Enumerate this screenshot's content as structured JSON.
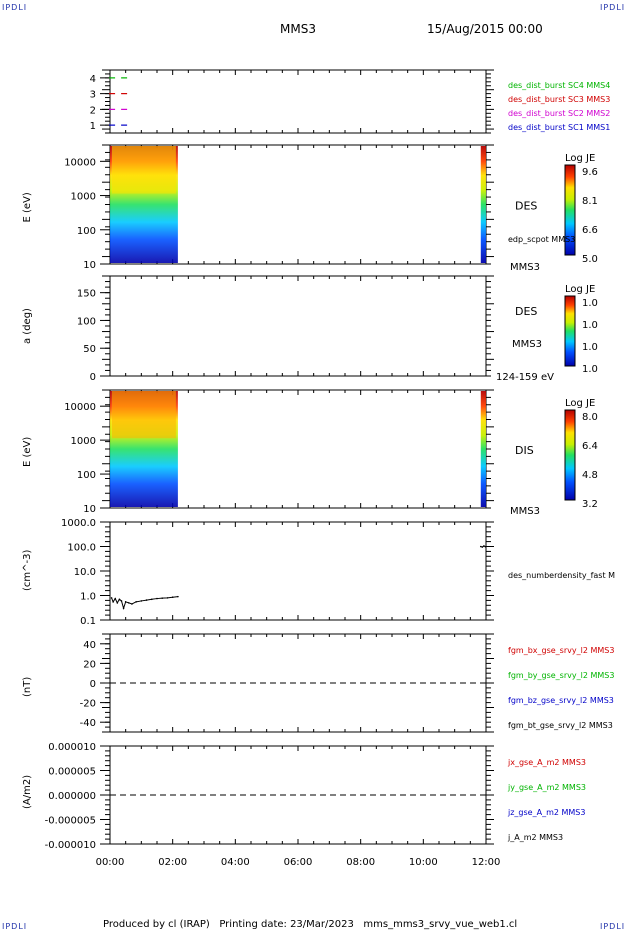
{
  "corner_label": "IPDLI",
  "header": {
    "spacecraft": "MMS3",
    "datetime": "15/Aug/2015 00:00"
  },
  "footer": "Produced by cl (IRAP)   Printing date: 23/Mar/2023   mms_mms3_srvy_vue_web1.cl",
  "chart_data": [
    {
      "type": "scatter",
      "panel": "burst-availability",
      "ylim": [
        0.5,
        4.5
      ],
      "yticks": [
        "1",
        "2",
        "3",
        "4"
      ],
      "series": [
        {
          "name": "des_dist_burst SC1 MMS1",
          "color": "#0000c8",
          "y": 1,
          "x": [
            "00:04",
            "00:27"
          ]
        },
        {
          "name": "des_dist_burst SC2 MMS2",
          "color": "#d000d0",
          "y": 2,
          "x": [
            "00:04",
            "00:27"
          ]
        },
        {
          "name": "des_dist_burst SC3 MMS3",
          "color": "#d00000",
          "y": 3,
          "x": [
            "00:04",
            "00:27"
          ]
        },
        {
          "name": "des_dist_burst SC4 MMS4",
          "color": "#00b400",
          "y": 4,
          "x": [
            "00:04",
            "00:27"
          ]
        }
      ]
    },
    {
      "type": "heatmap",
      "panel": "des-energy-spectrogram",
      "ylabel": "E (eV)",
      "yscale": "log",
      "ylim": [
        10,
        30000
      ],
      "yticks": [
        "10",
        "100",
        "1000",
        "10000"
      ],
      "label": "DES",
      "sub_label": "MMS3",
      "overlay": "edp_scpot MMS3",
      "colorbar": {
        "title": "Log JE",
        "ticks": [
          "9.6",
          "8.1",
          "6.6",
          "5.0"
        ]
      },
      "data_coverage": [
        [
          "00:00",
          "02:10"
        ],
        [
          "11:50",
          "12:00"
        ]
      ]
    },
    {
      "type": "heatmap",
      "panel": "des-pitch-angle",
      "ylabel": "a (deg)",
      "ylim": [
        0,
        180
      ],
      "yticks": [
        "0",
        "50",
        "100",
        "150"
      ],
      "label": "DES",
      "sub_label": "MMS3",
      "energy_range": "124-159 eV",
      "colorbar": {
        "title": "Log JE",
        "ticks": [
          "1.0",
          "1.0",
          "1.0",
          "1.0"
        ]
      }
    },
    {
      "type": "heatmap",
      "panel": "dis-energy-spectrogram",
      "ylabel": "E (eV)",
      "yscale": "log",
      "ylim": [
        10,
        30000
      ],
      "yticks": [
        "10",
        "100",
        "1000",
        "10000"
      ],
      "label": "DIS",
      "sub_label": "MMS3",
      "colorbar": {
        "title": "Log JE",
        "ticks": [
          "8.0",
          "6.4",
          "4.8",
          "3.2"
        ]
      },
      "data_coverage": [
        [
          "00:00",
          "02:10"
        ],
        [
          "11:50",
          "12:00"
        ]
      ]
    },
    {
      "type": "line",
      "panel": "electron-density",
      "ylabel": "(cm^-3)",
      "yscale": "log",
      "ylim": [
        0.1,
        1000
      ],
      "yticks": [
        "0.1",
        "1.0",
        "10.0",
        "100.0",
        "1000.0"
      ],
      "series": [
        {
          "name": "des_numberdensity_fast M",
          "x": [
            "00:03",
            "00:06",
            "00:10",
            "00:14",
            "00:18",
            "00:22",
            "00:26",
            "00:30",
            "00:36",
            "00:42",
            "00:50",
            "01:00",
            "01:10",
            "01:20",
            "01:30",
            "01:40",
            "01:50",
            "02:00",
            "02:10",
            "11:50",
            "11:53",
            "11:56",
            "11:59"
          ],
          "values": [
            0.8,
            0.55,
            0.75,
            0.5,
            0.7,
            0.6,
            0.3,
            0.55,
            0.5,
            0.45,
            0.55,
            0.6,
            0.65,
            0.7,
            0.75,
            0.78,
            0.8,
            0.85,
            0.9,
            100,
            95,
            105,
            98
          ]
        }
      ]
    },
    {
      "type": "line",
      "panel": "magnetic-field",
      "ylabel": "(nT)",
      "ylim": [
        -50,
        50
      ],
      "yticks": [
        "-40",
        "-20",
        "0",
        "20",
        "40"
      ],
      "series": [
        {
          "name": "fgm_bx_gse_srvy_l2 MMS3",
          "color": "#d00000"
        },
        {
          "name": "fgm_by_gse_srvy_l2 MMS3",
          "color": "#00b400"
        },
        {
          "name": "fgm_bz_gse_srvy_l2 MMS3",
          "color": "#0000c8"
        },
        {
          "name": "fgm_bt_gse_srvy_l2 MMS3",
          "color": "#000000"
        }
      ]
    },
    {
      "type": "line",
      "panel": "current-density",
      "ylabel": "(A/m2)",
      "ylim": [
        -1e-05,
        1e-05
      ],
      "yticks": [
        "-0.000010",
        "-0.000005",
        "0.000000",
        "0.000005",
        "0.000010"
      ],
      "series": [
        {
          "name": "jx_gse_A_m2 MMS3",
          "color": "#d00000"
        },
        {
          "name": "jy_gse_A_m2 MMS3",
          "color": "#00b400"
        },
        {
          "name": "jz_gse_A_m2 MMS3",
          "color": "#0000c8"
        },
        {
          "name": "j_A_m2 MMS3",
          "color": "#000000"
        }
      ]
    }
  ],
  "xaxis": {
    "ticks": [
      "00:00",
      "02:00",
      "04:00",
      "06:00",
      "08:00",
      "10:00",
      "12:00"
    ]
  }
}
